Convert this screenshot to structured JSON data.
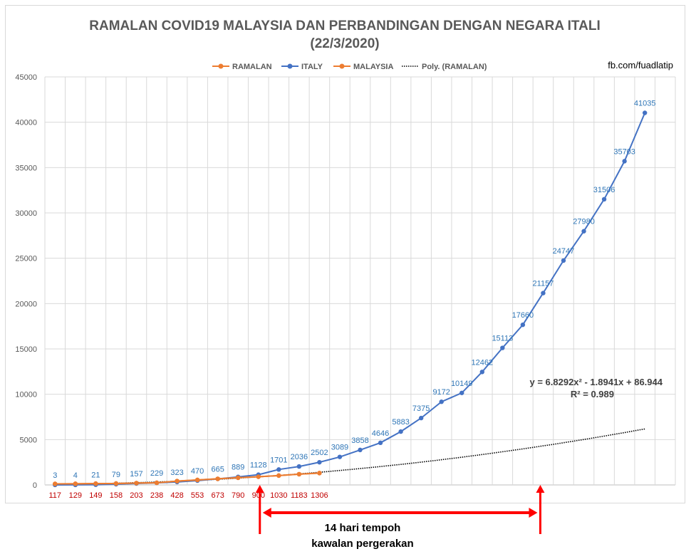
{
  "chart_data": {
    "type": "line",
    "title": "RAMALAN COVID19  MALAYSIA DAN PERBANDINGAN DENGAN NEGARA ITALI",
    "subtitle": "(22/3/2020)",
    "credit": "fb.com/fuadlatip",
    "ylim": [
      0,
      45000
    ],
    "y_ticks": [
      "0",
      "5000",
      "10000",
      "15000",
      "20000",
      "25000",
      "30000",
      "35000",
      "40000",
      "45000"
    ],
    "x_count": 31,
    "legend_position": "top",
    "grid": true,
    "series": [
      {
        "name": "RAMALAN",
        "color": "#ed7d31",
        "values": [
          117,
          129,
          149,
          158,
          203,
          238,
          428,
          553,
          673,
          790,
          900,
          1030,
          1183,
          1306
        ],
        "labels": [
          "117",
          "129",
          "149",
          "158",
          "203",
          "238",
          "428",
          "553",
          "673",
          "790",
          "900",
          "1030",
          "1183",
          "1306"
        ]
      },
      {
        "name": "ITALY",
        "color": "#4472c4",
        "values": [
          3,
          4,
          21,
          79,
          157,
          229,
          323,
          470,
          665,
          889,
          1128,
          1701,
          2036,
          2502,
          3089,
          3858,
          4646,
          5883,
          7375,
          9172,
          10149,
          12462,
          15113,
          17660,
          21157,
          24747,
          27980,
          31506,
          35703,
          41035
        ],
        "labels": [
          "3",
          "4",
          "21",
          "79",
          "157",
          "229",
          "323",
          "470",
          "665",
          "889",
          "1128",
          "1701",
          "2036",
          "2502",
          "3089",
          "3858",
          "4646",
          "5883",
          "7375",
          "9172",
          "10149",
          "12462",
          "15113",
          "17660",
          "21157",
          "24747",
          "27980",
          "31506",
          "35703",
          "41035"
        ]
      },
      {
        "name": "MALAYSIA",
        "color": "#ed7d31",
        "values": [
          117,
          129,
          149,
          158,
          203,
          238,
          428,
          553,
          673,
          790,
          900,
          1030,
          1183,
          1306
        ]
      },
      {
        "name": "Poly. (RAMALAN)",
        "color": "#000000",
        "trend": {
          "a": 6.8292,
          "b": -1.8941,
          "c": 86.944,
          "points": 30
        }
      }
    ],
    "trend_equation": "y = 6.8292x² - 1.8941x + 86.944",
    "trend_r2": "R² = 0.989",
    "annotation": {
      "line1": "14 hari tempoh",
      "line2": "kawalan pergerakan",
      "from_index": 10,
      "to_index": 24
    }
  }
}
